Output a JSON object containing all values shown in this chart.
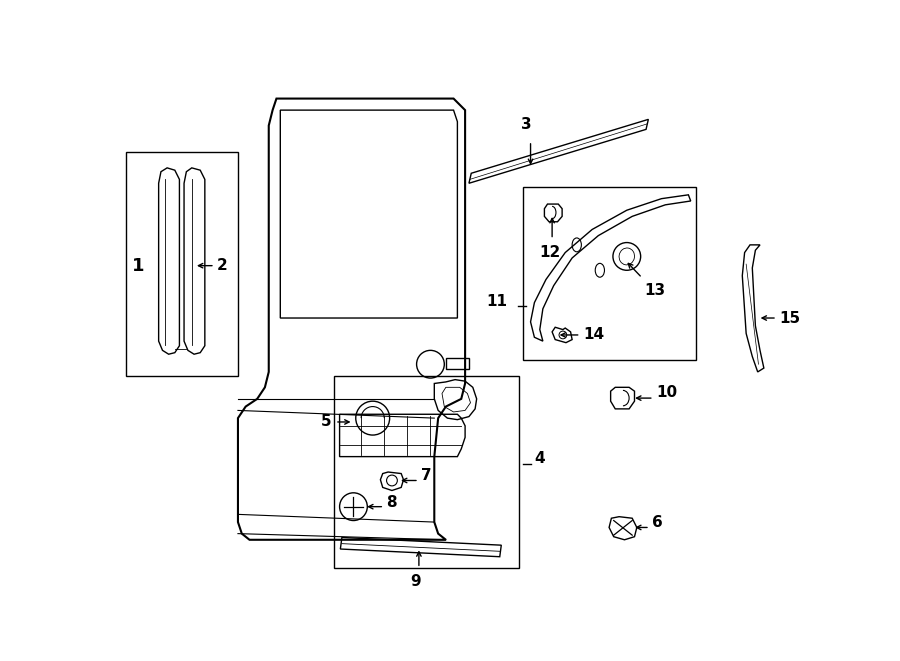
{
  "background": "#ffffff",
  "line_color": "#000000",
  "lw": 1.0,
  "lw_thick": 1.5,
  "figsize": [
    9.0,
    6.61
  ],
  "dpi": 100
}
